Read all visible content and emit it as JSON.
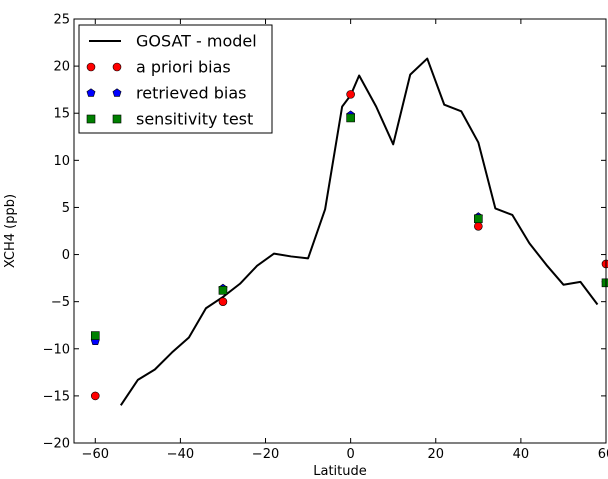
{
  "chart_data": {
    "type": "line",
    "xlabel": "Latitude",
    "ylabel": "XCH4 (ppb)",
    "xlim": [
      -65,
      60
    ],
    "ylim": [
      -20,
      25
    ],
    "xticks": [
      -60,
      -40,
      -20,
      0,
      20,
      40,
      60
    ],
    "yticks": [
      -20,
      -15,
      -10,
      -5,
      0,
      5,
      10,
      15,
      20,
      25
    ],
    "grid": false,
    "legend_position": "top-left",
    "series": [
      {
        "name": "GOSAT - model",
        "kind": "line",
        "color": "#000000",
        "x": [
          -54,
          -50,
          -46,
          -42,
          -38,
          -34,
          -30,
          -26,
          -22,
          -18,
          -14,
          -10,
          -6,
          -2,
          0,
          2,
          6,
          10,
          14,
          18,
          22,
          26,
          30,
          34,
          38,
          42,
          46,
          50,
          54,
          58
        ],
        "y": [
          -16.0,
          -13.3,
          -12.2,
          -10.4,
          -8.8,
          -5.7,
          -4.5,
          -3.1,
          -1.2,
          0.1,
          -0.2,
          -0.4,
          4.8,
          15.7,
          16.9,
          19.0,
          15.7,
          11.7,
          19.1,
          20.8,
          15.9,
          15.2,
          11.9,
          4.9,
          4.2,
          1.2,
          -1.1,
          -3.2,
          -2.9,
          -5.3
        ]
      },
      {
        "name": "a priori bias",
        "kind": "marker",
        "marker": "circle",
        "color": "#ff0000",
        "x": [
          -60,
          -30,
          0,
          30,
          60
        ],
        "y": [
          -15.0,
          -5.0,
          17.0,
          3.0,
          -1.0
        ]
      },
      {
        "name": "retrieved bias",
        "kind": "marker",
        "marker": "pentagon",
        "color": "#0000ff",
        "x": [
          -60,
          -30,
          0,
          30,
          60
        ],
        "y": [
          -9.2,
          -3.6,
          14.8,
          4.0,
          -3.0
        ]
      },
      {
        "name": "sensitivity test",
        "kind": "marker",
        "marker": "square",
        "color": "#008000",
        "x": [
          -60,
          -30,
          0,
          30,
          60
        ],
        "y": [
          -8.6,
          -3.8,
          14.5,
          3.8,
          -3.0
        ]
      }
    ]
  }
}
